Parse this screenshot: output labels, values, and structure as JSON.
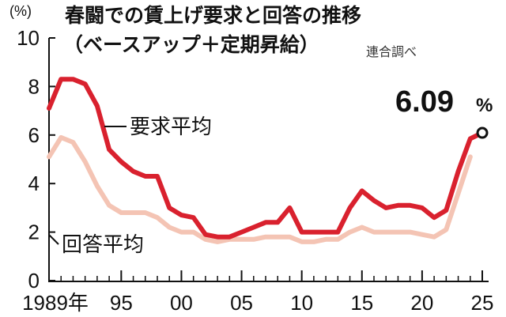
{
  "colors": {
    "demand": "#d9212e",
    "answer": "#f4c4b4",
    "axis": "#111111"
  },
  "chart_data": {
    "type": "line",
    "title": "春闘での賃上げ要求と回答の推移",
    "subtitle": "（ベースアップ＋定期昇給）",
    "source": "連合調べ",
    "y_unit": "(%)",
    "ylim": [
      0,
      10
    ],
    "y_ticks": [
      "0",
      "2",
      "4",
      "6",
      "8",
      "10"
    ],
    "xlim": [
      1989,
      2025
    ],
    "x_ticks": [
      {
        "year": 1989,
        "label": "1989年"
      },
      {
        "year": 1995,
        "label": "95"
      },
      {
        "year": 2000,
        "label": "00"
      },
      {
        "year": 2005,
        "label": "05"
      },
      {
        "year": 2010,
        "label": "10"
      },
      {
        "year": 2015,
        "label": "15"
      },
      {
        "year": 2020,
        "label": "20"
      },
      {
        "year": 2025,
        "label": "25"
      }
    ],
    "grid": false,
    "series": [
      {
        "name": "要求平均",
        "color": "#d9212e",
        "points": [
          [
            1989,
            7.1
          ],
          [
            1990,
            8.3
          ],
          [
            1991,
            8.3
          ],
          [
            1992,
            8.1
          ],
          [
            1993,
            7.2
          ],
          [
            1994,
            5.4
          ],
          [
            1995,
            4.9
          ],
          [
            1996,
            4.5
          ],
          [
            1997,
            4.3
          ],
          [
            1998,
            4.3
          ],
          [
            1999,
            3.0
          ],
          [
            2000,
            2.7
          ],
          [
            2001,
            2.6
          ],
          [
            2002,
            1.9
          ],
          [
            2003,
            1.8
          ],
          [
            2004,
            1.8
          ],
          [
            2005,
            2.0
          ],
          [
            2006,
            2.2
          ],
          [
            2007,
            2.4
          ],
          [
            2008,
            2.4
          ],
          [
            2009,
            3.0
          ],
          [
            2010,
            2.0
          ],
          [
            2011,
            2.0
          ],
          [
            2012,
            2.0
          ],
          [
            2013,
            2.0
          ],
          [
            2014,
            3.0
          ],
          [
            2015,
            3.7
          ],
          [
            2016,
            3.3
          ],
          [
            2017,
            3.0
          ],
          [
            2018,
            3.1
          ],
          [
            2019,
            3.1
          ],
          [
            2020,
            3.0
          ],
          [
            2021,
            2.6
          ],
          [
            2022,
            2.9
          ],
          [
            2023,
            4.5
          ],
          [
            2024,
            5.85
          ],
          [
            2025,
            6.09
          ]
        ]
      },
      {
        "name": "回答平均",
        "color": "#f4c4b4",
        "points": [
          [
            1989,
            5.1
          ],
          [
            1990,
            5.9
          ],
          [
            1991,
            5.7
          ],
          [
            1992,
            4.9
          ],
          [
            1993,
            3.9
          ],
          [
            1994,
            3.1
          ],
          [
            1995,
            2.8
          ],
          [
            1996,
            2.8
          ],
          [
            1997,
            2.8
          ],
          [
            1998,
            2.6
          ],
          [
            1999,
            2.2
          ],
          [
            2000,
            2.0
          ],
          [
            2001,
            2.0
          ],
          [
            2002,
            1.7
          ],
          [
            2003,
            1.6
          ],
          [
            2004,
            1.7
          ],
          [
            2005,
            1.7
          ],
          [
            2006,
            1.7
          ],
          [
            2007,
            1.8
          ],
          [
            2008,
            1.8
          ],
          [
            2009,
            1.8
          ],
          [
            2010,
            1.6
          ],
          [
            2011,
            1.6
          ],
          [
            2012,
            1.7
          ],
          [
            2013,
            1.7
          ],
          [
            2014,
            2.0
          ],
          [
            2015,
            2.2
          ],
          [
            2016,
            2.0
          ],
          [
            2017,
            2.0
          ],
          [
            2018,
            2.0
          ],
          [
            2019,
            2.0
          ],
          [
            2020,
            1.9
          ],
          [
            2021,
            1.8
          ],
          [
            2022,
            2.1
          ],
          [
            2023,
            3.6
          ],
          [
            2024,
            5.1
          ]
        ]
      }
    ],
    "highlight": {
      "value": "6.09",
      "unit": "%"
    }
  }
}
